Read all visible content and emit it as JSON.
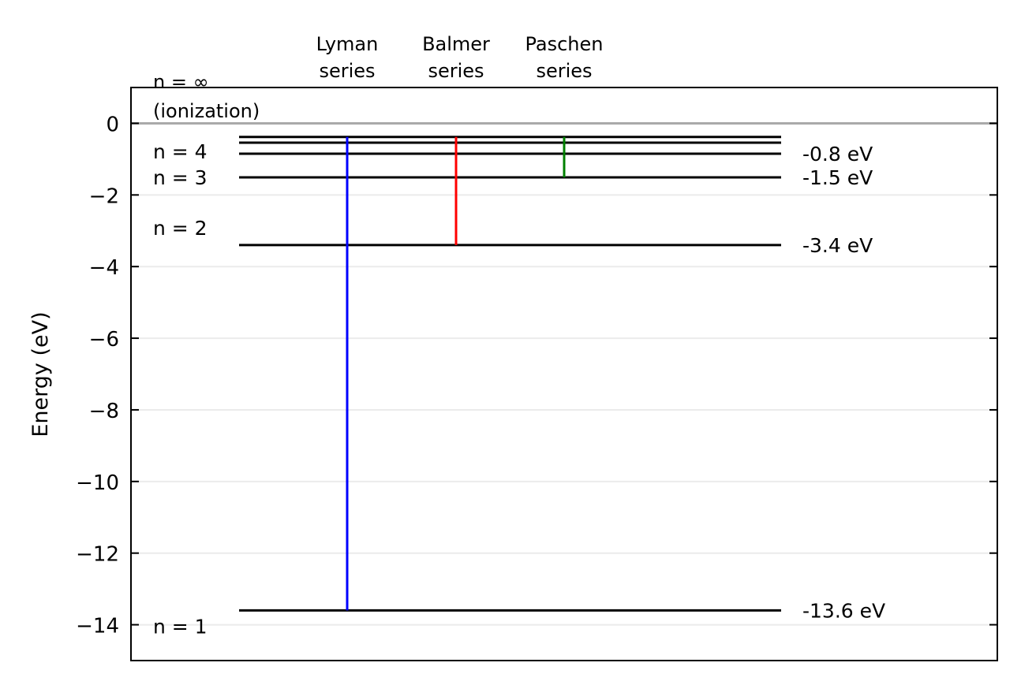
{
  "chart_data": {
    "type": "energy-level-diagram",
    "title": "",
    "xlabel": "",
    "ylabel": "Energy (eV)",
    "ylim": [
      -15,
      1
    ],
    "yticks": [
      0,
      -2,
      -4,
      -6,
      -8,
      -10,
      -12,
      -14
    ],
    "ytick_labels": [
      "0",
      "−2",
      "−4",
      "−6",
      "−8",
      "−10",
      "−12",
      "−14"
    ],
    "grid": "horizontal",
    "ionization": {
      "energy": 0,
      "label_line1": "n = ∞",
      "label_line2": "(ionization)",
      "color": "#aaaaaa"
    },
    "levels": [
      {
        "n": 1,
        "energy": -13.6,
        "left_label": "n = 1",
        "right_label": "-13.6 eV"
      },
      {
        "n": 2,
        "energy": -3.4,
        "left_label": "n = 2",
        "right_label": "-3.4 eV"
      },
      {
        "n": 3,
        "energy": -1.51,
        "left_label": "n = 3",
        "right_label": "-1.5 eV"
      },
      {
        "n": 4,
        "energy": -0.85,
        "left_label": "n = 4",
        "right_label": "-0.8 eV"
      },
      {
        "n": 5,
        "energy": -0.54,
        "left_label": "",
        "right_label": ""
      },
      {
        "n": 6,
        "energy": -0.38,
        "left_label": "",
        "right_label": ""
      }
    ],
    "series": [
      {
        "name_line1": "Lyman",
        "name_line2": "series",
        "color": "#0000ff",
        "from_energy": -0.38,
        "to_energy": -13.6
      },
      {
        "name_line1": "Balmer",
        "name_line2": "series",
        "color": "#ff0000",
        "from_energy": -0.38,
        "to_energy": -3.4
      },
      {
        "name_line1": "Paschen",
        "name_line2": "series",
        "color": "#008000",
        "from_energy": -0.38,
        "to_energy": -1.51
      }
    ]
  }
}
